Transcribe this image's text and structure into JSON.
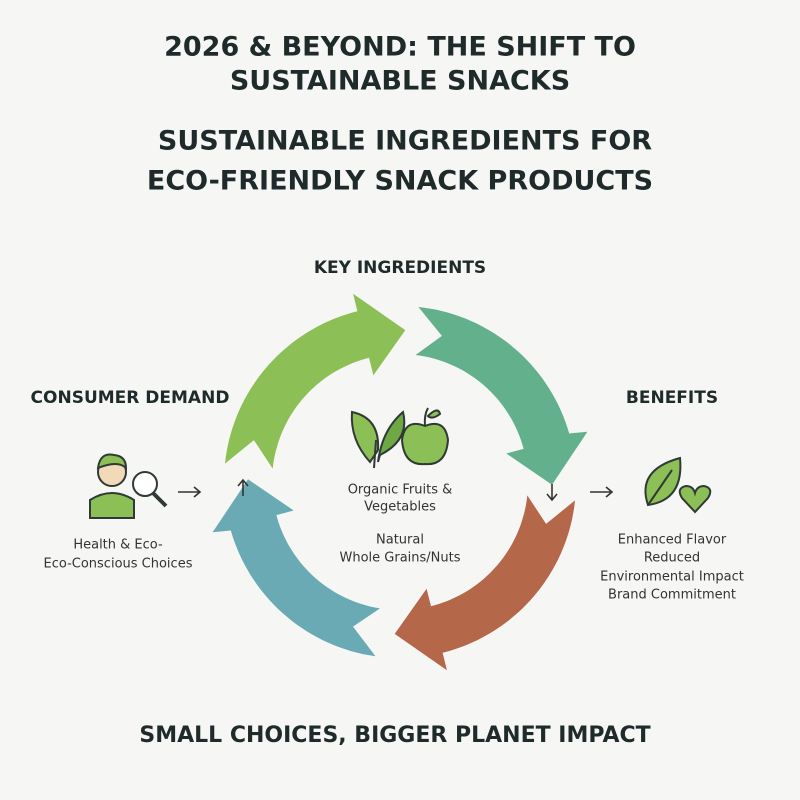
{
  "header": {
    "title_lines": [
      "2026 & BEYOND: THE SHIFT TO",
      "SUSTAINABLE SNACKS"
    ],
    "subtitle_lines": [
      "SUSTAINABLE INGREDIENTS FOR",
      "ECO-FRIENDLY SNACK PRODUCTS"
    ]
  },
  "cycle": {
    "top_label": "KEY INGREDIENTS",
    "left": {
      "label": "CONSUMER DEMAND",
      "lines": [
        "Health & Eco-",
        "Eco-Conscious Choices"
      ]
    },
    "center": {
      "items": [
        [
          "Organic Fruits &",
          "Vegetables"
        ],
        [
          "Natural",
          "Whole Grains/Nuts"
        ]
      ]
    },
    "right": {
      "label": "BENEFITS",
      "lines": [
        "Enhanced Flavor",
        "Reduced",
        "Environmental Impact",
        "Brand Commitment"
      ]
    }
  },
  "footer": "SMALL CHOICES, BIGGER PLANET IMPACT"
}
